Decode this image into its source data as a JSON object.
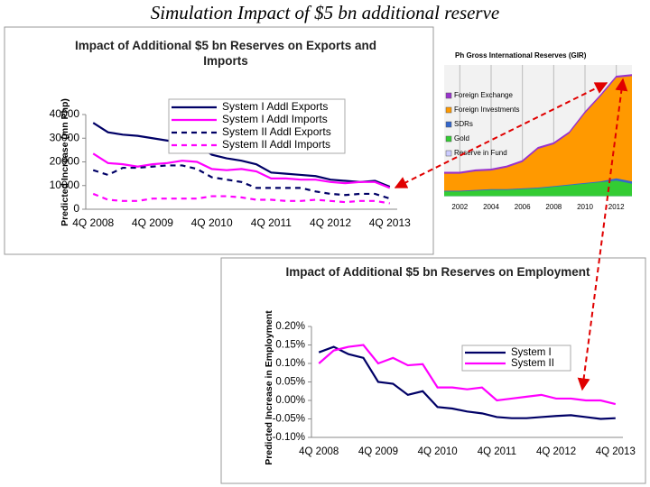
{
  "title": "Simulation Impact of $5 bn additional reserve",
  "chart_data": [
    {
      "type": "line",
      "title": "Impact of Additional $5 bn Reserves on Exports and Imports",
      "y_label": "Predicted Increase (mn Php)",
      "categories": [
        "4Q 2008",
        null,
        null,
        null,
        "4Q 2009",
        null,
        null,
        null,
        "4Q 2010",
        null,
        null,
        null,
        "4Q 2011",
        null,
        null,
        null,
        "4Q 2012",
        null,
        null,
        null,
        "4Q 2013"
      ],
      "ylim": [
        0,
        40000
      ],
      "yticks": [
        0,
        10000,
        20000,
        30000,
        40000
      ],
      "grid": false,
      "legend": "upper right",
      "series": [
        {
          "name": "System I Addl Exports",
          "color": "#000066",
          "dash": false,
          "values": [
            36500,
            32500,
            31500,
            31000,
            30000,
            29000,
            28000,
            27500,
            23000,
            21500,
            20500,
            19000,
            15500,
            15000,
            14500,
            14000,
            12500,
            12000,
            11500,
            12000,
            9500
          ]
        },
        {
          "name": "System I Addl Imports",
          "color": "#ff00ff",
          "dash": false,
          "values": [
            23500,
            19500,
            19000,
            18000,
            19000,
            19500,
            20500,
            20000,
            17000,
            16500,
            17000,
            16000,
            13000,
            13000,
            12500,
            12500,
            11500,
            11000,
            11500,
            11500,
            9000
          ]
        },
        {
          "name": "System II Addl Exports",
          "color": "#000066",
          "dash": true,
          "values": [
            16500,
            14500,
            17500,
            17500,
            18000,
            18500,
            18500,
            17000,
            13500,
            12500,
            11500,
            9000,
            9000,
            9000,
            9000,
            7500,
            6500,
            6000,
            6500,
            6500,
            4500
          ]
        },
        {
          "name": "System II Addl Imports",
          "color": "#ff00ff",
          "dash": true,
          "values": [
            6500,
            4000,
            3500,
            3500,
            4500,
            4500,
            4500,
            4500,
            5500,
            5500,
            5000,
            4000,
            4000,
            3500,
            3500,
            4000,
            3500,
            3000,
            3500,
            3500,
            2500
          ]
        }
      ]
    },
    {
      "type": "line",
      "title": "Impact of Additional $5 bn Reserves on Employment",
      "y_label": "Predicted Increase in Employment",
      "categories": [
        "4Q 2008",
        null,
        null,
        null,
        "4Q 2009",
        null,
        null,
        null,
        "4Q 2010",
        null,
        null,
        null,
        "4Q 2011",
        null,
        null,
        null,
        "4Q 2012",
        null,
        null,
        null,
        "4Q 2013"
      ],
      "ylim": [
        -0.1,
        0.2
      ],
      "yticks": [
        {
          "value": -0.1,
          "label": "-0.10%"
        },
        {
          "value": -0.05,
          "label": "-0.05%"
        },
        {
          "value": 0,
          "label": "0.00%"
        },
        {
          "value": 0.05,
          "label": "0.05%"
        },
        {
          "value": 0.1,
          "label": "0.10%"
        },
        {
          "value": 0.15,
          "label": "0.15%"
        },
        {
          "value": 0.2,
          "label": "0.20%"
        }
      ],
      "grid": false,
      "legend": "upper right",
      "series": [
        {
          "name": "System I",
          "color": "#000066",
          "dash": false,
          "values": [
            0.13,
            0.145,
            0.125,
            0.115,
            0.05,
            0.045,
            0.015,
            0.025,
            -0.018,
            -0.022,
            -0.03,
            -0.035,
            -0.045,
            -0.048,
            -0.048,
            -0.045,
            -0.042,
            -0.04,
            -0.045,
            -0.05,
            -0.048
          ]
        },
        {
          "name": "System II",
          "color": "#ff00ff",
          "dash": false,
          "values": [
            0.1,
            0.135,
            0.145,
            0.15,
            0.1,
            0.115,
            0.095,
            0.098,
            0.035,
            0.035,
            0.03,
            0.035,
            0.0,
            0.005,
            0.01,
            0.015,
            0.005,
            0.005,
            0.0,
            0.0,
            -0.01
          ]
        }
      ]
    },
    {
      "type": "area",
      "title": "Ph Gross International Reserves (GIR)",
      "x": [
        2001,
        2002,
        2003,
        2004,
        2005,
        2006,
        2007,
        2008,
        2009,
        2010,
        2011,
        2012,
        2013
      ],
      "xlim": [
        2001,
        2013
      ],
      "xticks": [
        2002,
        2004,
        2006,
        2008,
        2010,
        2012
      ],
      "ylim": [
        0,
        85
      ],
      "legend": "upper left",
      "series": [
        {
          "name": "Foreign Exchange",
          "color": "#9933cc",
          "values": [
            1,
            1,
            1,
            1,
            1,
            1,
            1,
            1,
            1,
            1,
            1,
            1,
            1
          ]
        },
        {
          "name": "Foreign Investments",
          "color": "#ff9900",
          "values": [
            11,
            11,
            12,
            12,
            14,
            17,
            25,
            27,
            33,
            45,
            55,
            65,
            68
          ]
        },
        {
          "name": "SDRs",
          "color": "#3366cc",
          "values": [
            0.5,
            0.5,
            0.5,
            0.5,
            0.5,
            0.5,
            0.5,
            0.5,
            0.5,
            0.5,
            0.5,
            1.5,
            1.5
          ]
        },
        {
          "name": "Gold",
          "color": "#33cc33",
          "values": [
            3,
            3,
            3.5,
            4,
            4,
            4.5,
            5,
            6,
            7,
            8,
            9,
            10,
            8
          ]
        },
        {
          "name": "Reserve in Fund",
          "color": "#ccccff",
          "values": [
            0.3,
            0.3,
            0.3,
            0.3,
            0.3,
            0.3,
            0.3,
            0.3,
            0.3,
            0.3,
            0.3,
            0.3,
            0.3
          ]
        }
      ]
    }
  ]
}
